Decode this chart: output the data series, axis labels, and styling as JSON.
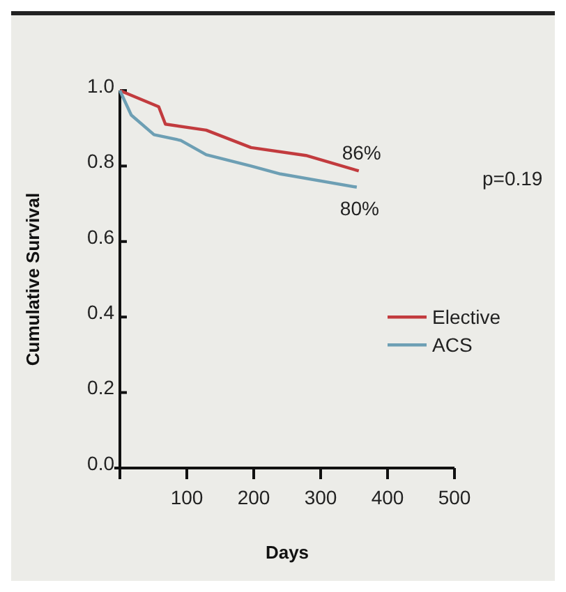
{
  "chart_data": {
    "type": "line",
    "xlabel": "Days",
    "ylabel": "Cumulative Survival",
    "xlim": [
      0,
      500
    ],
    "xticks": [
      {
        "value": 0,
        "label": null
      },
      100,
      200,
      300,
      400,
      500
    ],
    "ylim": [
      0,
      1
    ],
    "yticks": [
      {
        "value": 0,
        "label": "0.0"
      },
      {
        "value": 0.2,
        "label": "0.2"
      },
      {
        "value": 0.4,
        "label": "0.4"
      },
      {
        "value": 0.6,
        "label": "0.6"
      },
      {
        "value": 0.8,
        "label": "0.8"
      },
      {
        "value": 1,
        "label": "1.0"
      }
    ],
    "series": [
      {
        "name": "Elective",
        "color": "#c23b3e",
        "x": [
          0,
          58,
          68,
          129,
          196,
          278,
          357
        ],
        "values": [
          1.0,
          0.957,
          0.911,
          0.895,
          0.849,
          0.828,
          0.787
        ]
      },
      {
        "name": "ACS",
        "color": "#6d9fb4",
        "x": [
          0,
          17,
          51,
          91,
          129,
          196,
          240,
          354
        ],
        "values": [
          1.0,
          0.935,
          0.883,
          0.868,
          0.83,
          0.8,
          0.779,
          0.744
        ]
      }
    ],
    "annotations": [
      {
        "text": "86%",
        "x": 357,
        "y": 0.787
      },
      {
        "text": "80%",
        "x": 354,
        "y": 0.744
      },
      "p=0.19"
    ],
    "legend": "right",
    "grid": false,
    "marker": "none",
    "line_style": "solid"
  }
}
